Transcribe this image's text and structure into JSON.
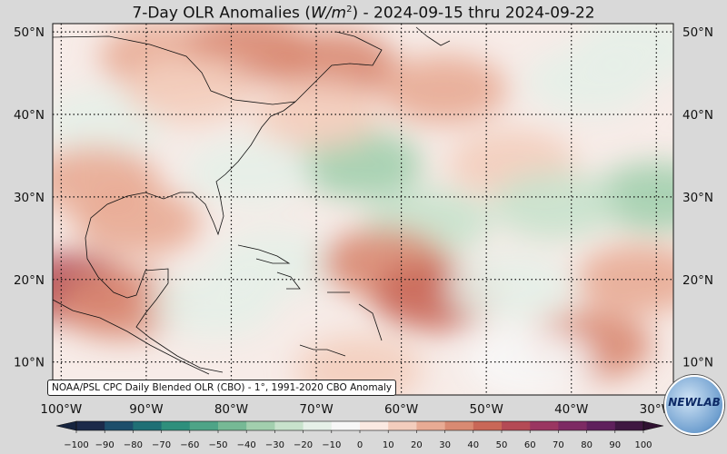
{
  "title": {
    "prefix": "7-Day OLR Anomalies (",
    "units": "W/m",
    "sup": "2",
    "suffix": ") - 2024-09-15 thru 2024-09-22"
  },
  "credit": "NOAA/PSL CPC Daily Blended OLR (CBO) - 1°, 1991-2020 CBO Anomaly",
  "logo": "NEWLAB",
  "map": {
    "lon_range": [
      -101,
      -28
    ],
    "lat_range": [
      6,
      51
    ],
    "lon_ticks": [
      "100°W",
      "90°W",
      "80°W",
      "70°W",
      "60°W",
      "50°W",
      "40°W",
      "30°W"
    ],
    "lat_ticks_left": [
      "50°N",
      "40°N",
      "30°N",
      "20°N",
      "10°N"
    ],
    "lat_ticks_right": [
      "50°N",
      "40°N",
      "30°N",
      "20°N",
      "10°N"
    ]
  },
  "colorbar": {
    "ticks": [
      "−100",
      "−90",
      "−80",
      "−70",
      "−60",
      "−50",
      "−40",
      "−30",
      "−20",
      "−10",
      "0",
      "10",
      "20",
      "30",
      "40",
      "50",
      "60",
      "70",
      "80",
      "90",
      "100"
    ],
    "colors": [
      "#1c2a4a",
      "#1d4e6b",
      "#1f6f75",
      "#2e8f7c",
      "#4ea487",
      "#76b995",
      "#a2cfae",
      "#c8e2cc",
      "#e6f0e8",
      "#f7f7f7",
      "#fbe9e2",
      "#f3cdbd",
      "#e8ab94",
      "#d98a72",
      "#c96757",
      "#b44a55",
      "#9a3661",
      "#7d2a63",
      "#5f205c",
      "#3f1741"
    ]
  },
  "anomalies": [
    {
      "lon": -88,
      "lat": 47,
      "v": 20
    },
    {
      "lon": -78,
      "lat": 48,
      "v": 35
    },
    {
      "lon": -68,
      "lat": 46,
      "v": 30
    },
    {
      "lon": -95,
      "lat": 39,
      "v": -15
    },
    {
      "lon": -85,
      "lat": 43,
      "v": 15
    },
    {
      "lon": -65,
      "lat": 34,
      "v": -40
    },
    {
      "lon": -57,
      "lat": 27,
      "v": -30
    },
    {
      "lon": -47,
      "lat": 34,
      "v": 15
    },
    {
      "lon": -30,
      "lat": 30,
      "v": -35
    },
    {
      "lon": -42,
      "lat": 29,
      "v": -25
    },
    {
      "lon": -38,
      "lat": 44,
      "v": -15
    },
    {
      "lon": -32,
      "lat": 48,
      "v": -20
    },
    {
      "lon": -91,
      "lat": 27,
      "v": 25
    },
    {
      "lon": -96,
      "lat": 32,
      "v": 20
    },
    {
      "lon": -99,
      "lat": 19,
      "v": 55
    },
    {
      "lon": -93,
      "lat": 17,
      "v": 30
    },
    {
      "lon": -82,
      "lat": 17,
      "v": -20
    },
    {
      "lon": -75,
      "lat": 22,
      "v": -20
    },
    {
      "lon": -62,
      "lat": 22,
      "v": 30
    },
    {
      "lon": -56,
      "lat": 18,
      "v": 40
    },
    {
      "lon": -47,
      "lat": 19,
      "v": -15
    },
    {
      "lon": -38,
      "lat": 12,
      "v": 35
    },
    {
      "lon": -32,
      "lat": 20,
      "v": 20
    },
    {
      "lon": -45,
      "lat": 10,
      "v": -10
    },
    {
      "lon": -65,
      "lat": 9,
      "v": 15
    },
    {
      "lon": -78,
      "lat": 33,
      "v": -15
    },
    {
      "lon": -70,
      "lat": 40,
      "v": 10
    },
    {
      "lon": -55,
      "lat": 43,
      "v": 20
    }
  ]
}
